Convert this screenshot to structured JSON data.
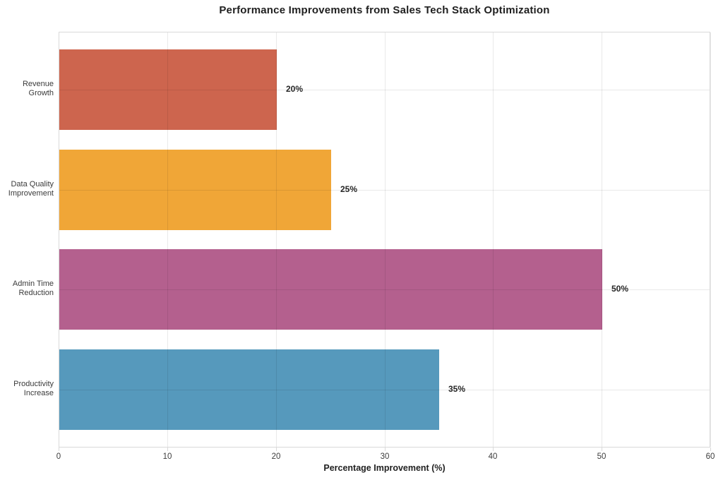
{
  "chart_data": {
    "type": "bar",
    "orientation": "horizontal",
    "title": "Performance Improvements from Sales Tech Stack Optimization",
    "xlabel": "Percentage Improvement (%)",
    "ylabel": "",
    "categories": [
      "Revenue Growth",
      "Data Quality Improvement",
      "Admin Time Reduction",
      "Productivity Increase"
    ],
    "category_label_lines": [
      [
        "Revenue",
        "Growth"
      ],
      [
        "Data Quality",
        "Improvement"
      ],
      [
        "Admin Time",
        "Reduction"
      ],
      [
        "Productivity",
        "Increase"
      ]
    ],
    "values": [
      20,
      25,
      50,
      35
    ],
    "bar_labels": [
      "20%",
      "25%",
      "50%",
      "35%"
    ],
    "bar_colors": [
      "#cd654e",
      "#f0a637",
      "#b4608e",
      "#5699bc"
    ],
    "xlim": [
      0,
      60
    ],
    "xticks": [
      0,
      10,
      20,
      30,
      40,
      50,
      60
    ],
    "grid": true,
    "legend": "none",
    "plot_border_color": "#d9d9d9",
    "background_color": "#ffffff"
  }
}
